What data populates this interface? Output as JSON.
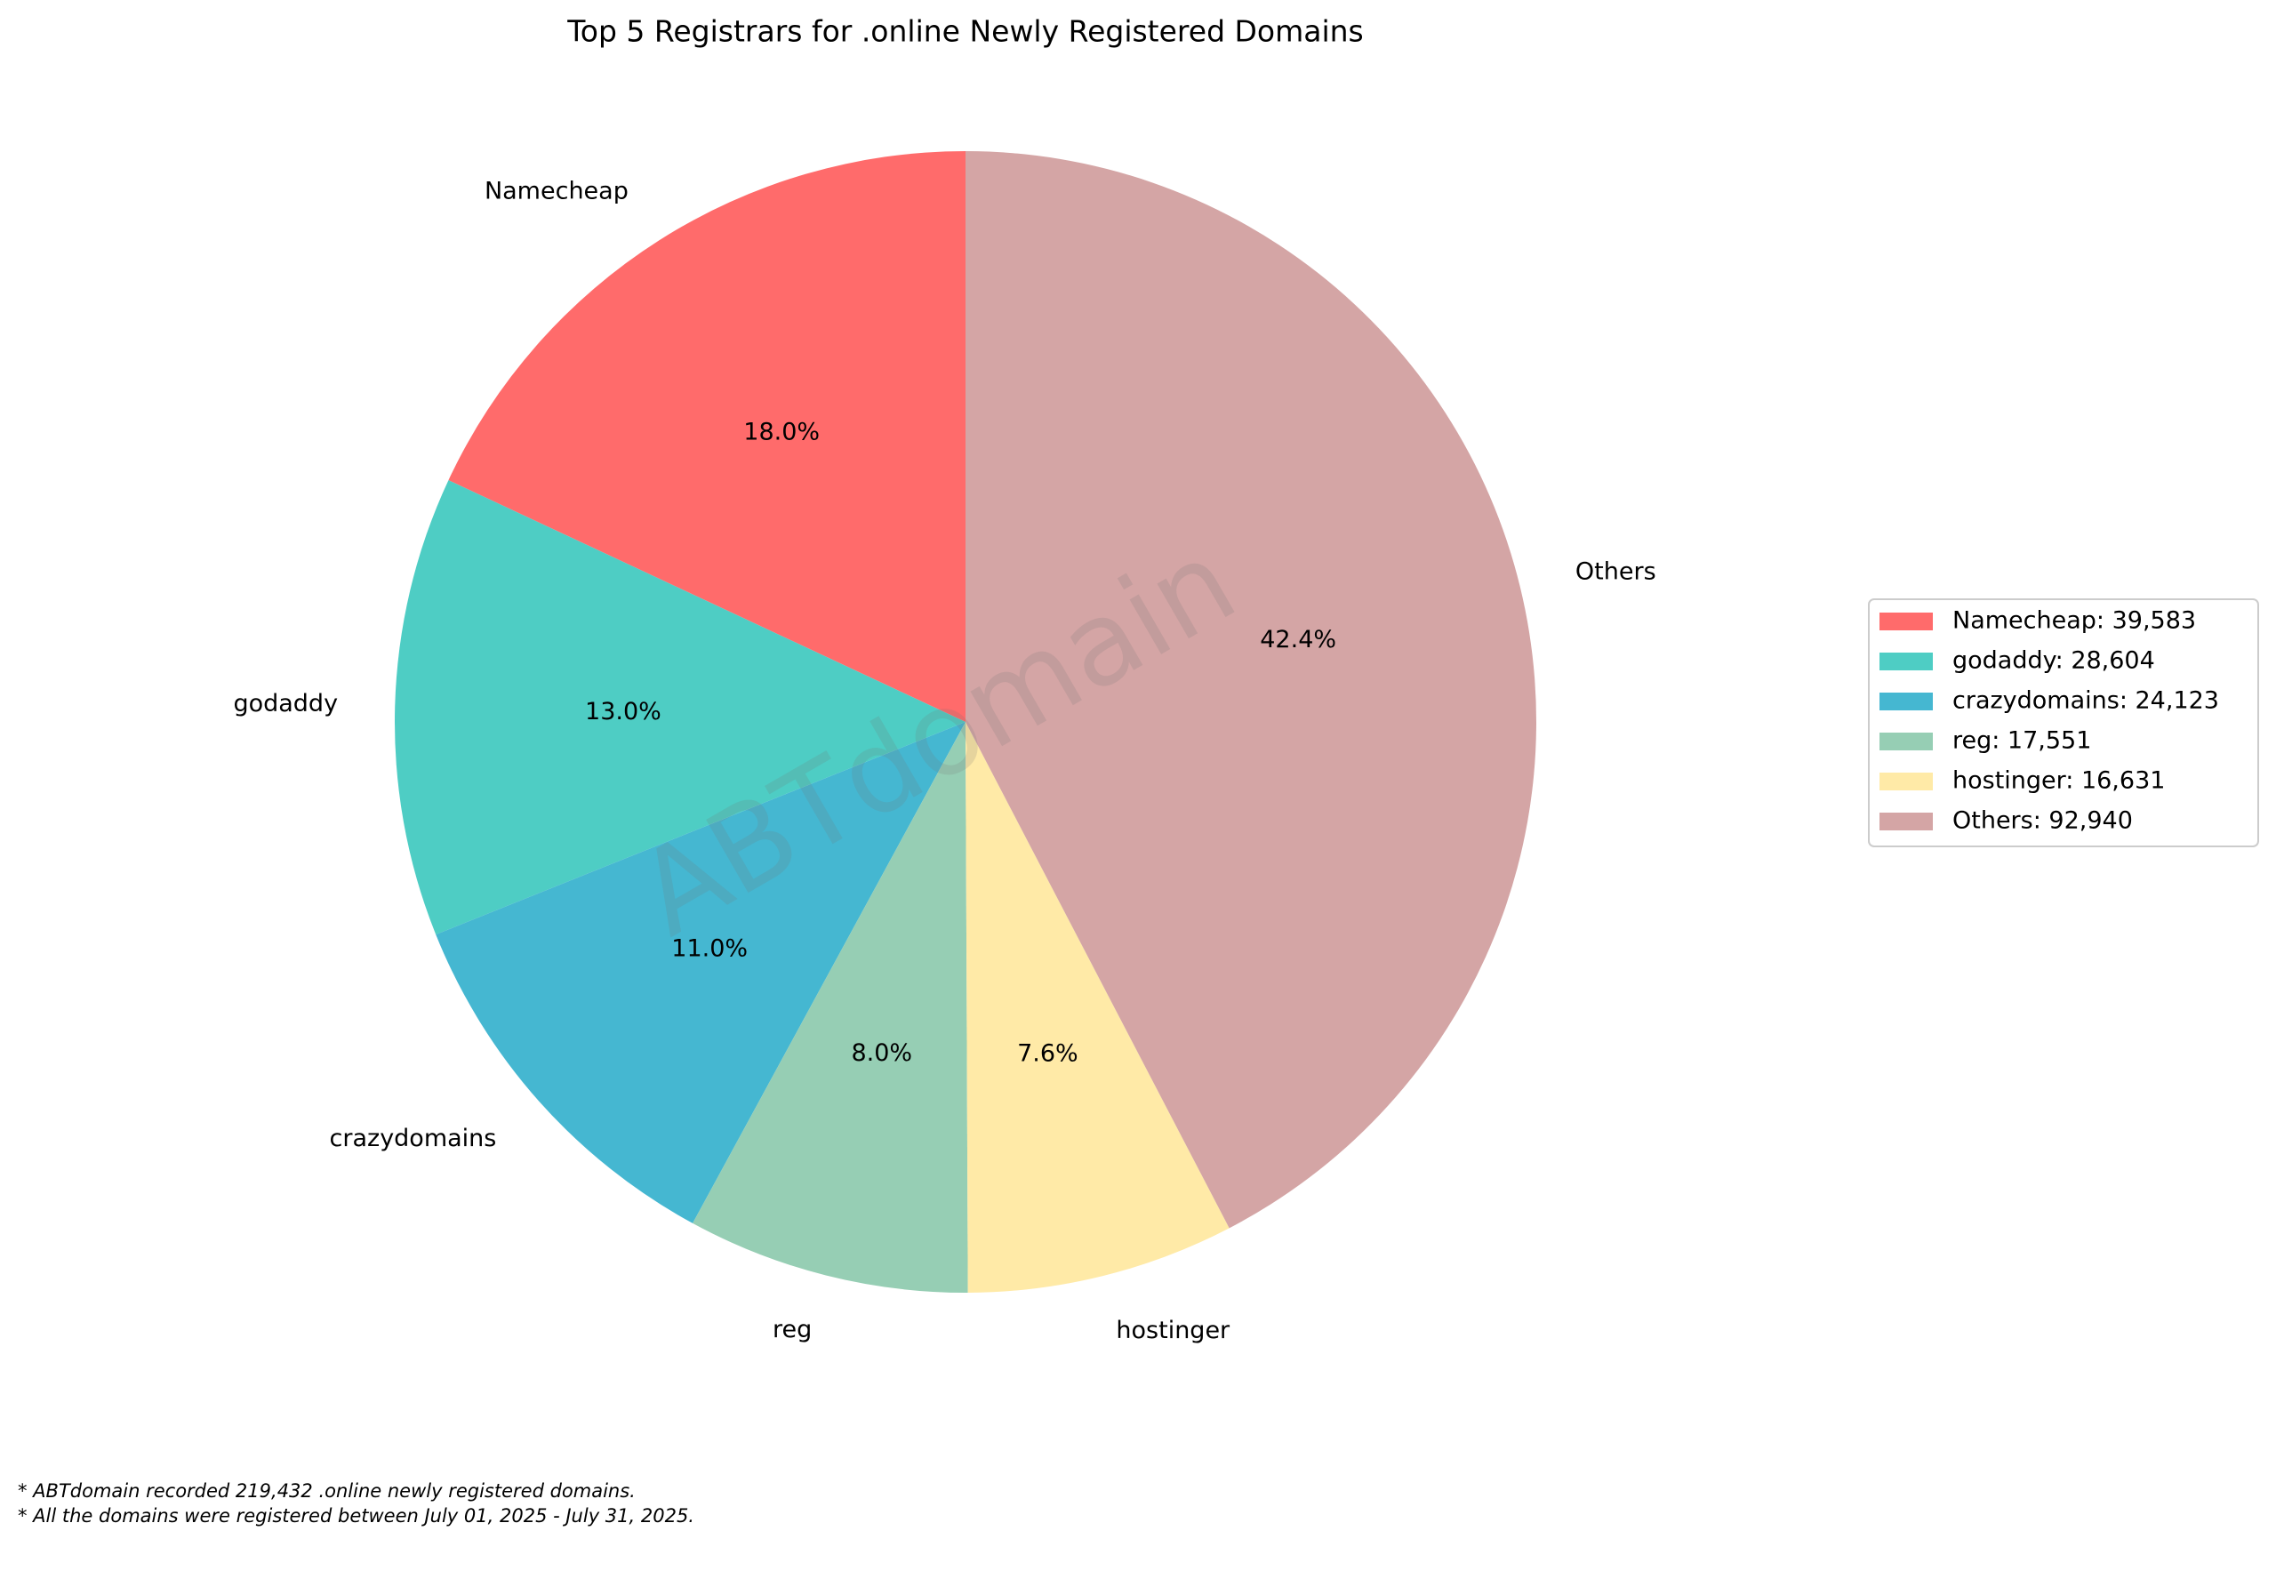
{
  "chart_data": {
    "type": "pie",
    "title": "Top 5 Registrars for .online Newly Registered Domains",
    "categories": [
      "Namecheap",
      "godaddy",
      "crazydomains",
      "reg",
      "hostinger",
      "Others"
    ],
    "values": [
      39583,
      28604,
      24123,
      17551,
      16631,
      92940
    ],
    "percent_labels": [
      "18.0%",
      "13.0%",
      "11.0%",
      "8.0%",
      "7.6%",
      "42.4%"
    ],
    "colors": [
      "#ff6b6b",
      "#4ecdc4",
      "#45b7d1",
      "#96ceb4",
      "#ffeaa7",
      "#d4a5a5"
    ],
    "legend_labels": [
      "Namecheap: 39,583",
      "godaddy: 28,604",
      "crazydomains: 24,123",
      "reg: 17,551",
      "hostinger: 16,631",
      "Others: 92,940"
    ],
    "legend_position": "right",
    "watermark": "ABTdomain",
    "footnotes": [
      "* ABTdomain recorded 219,432 .online newly registered domains.",
      "* All the domains were registered between July 01, 2025 - July 31, 2025."
    ]
  }
}
